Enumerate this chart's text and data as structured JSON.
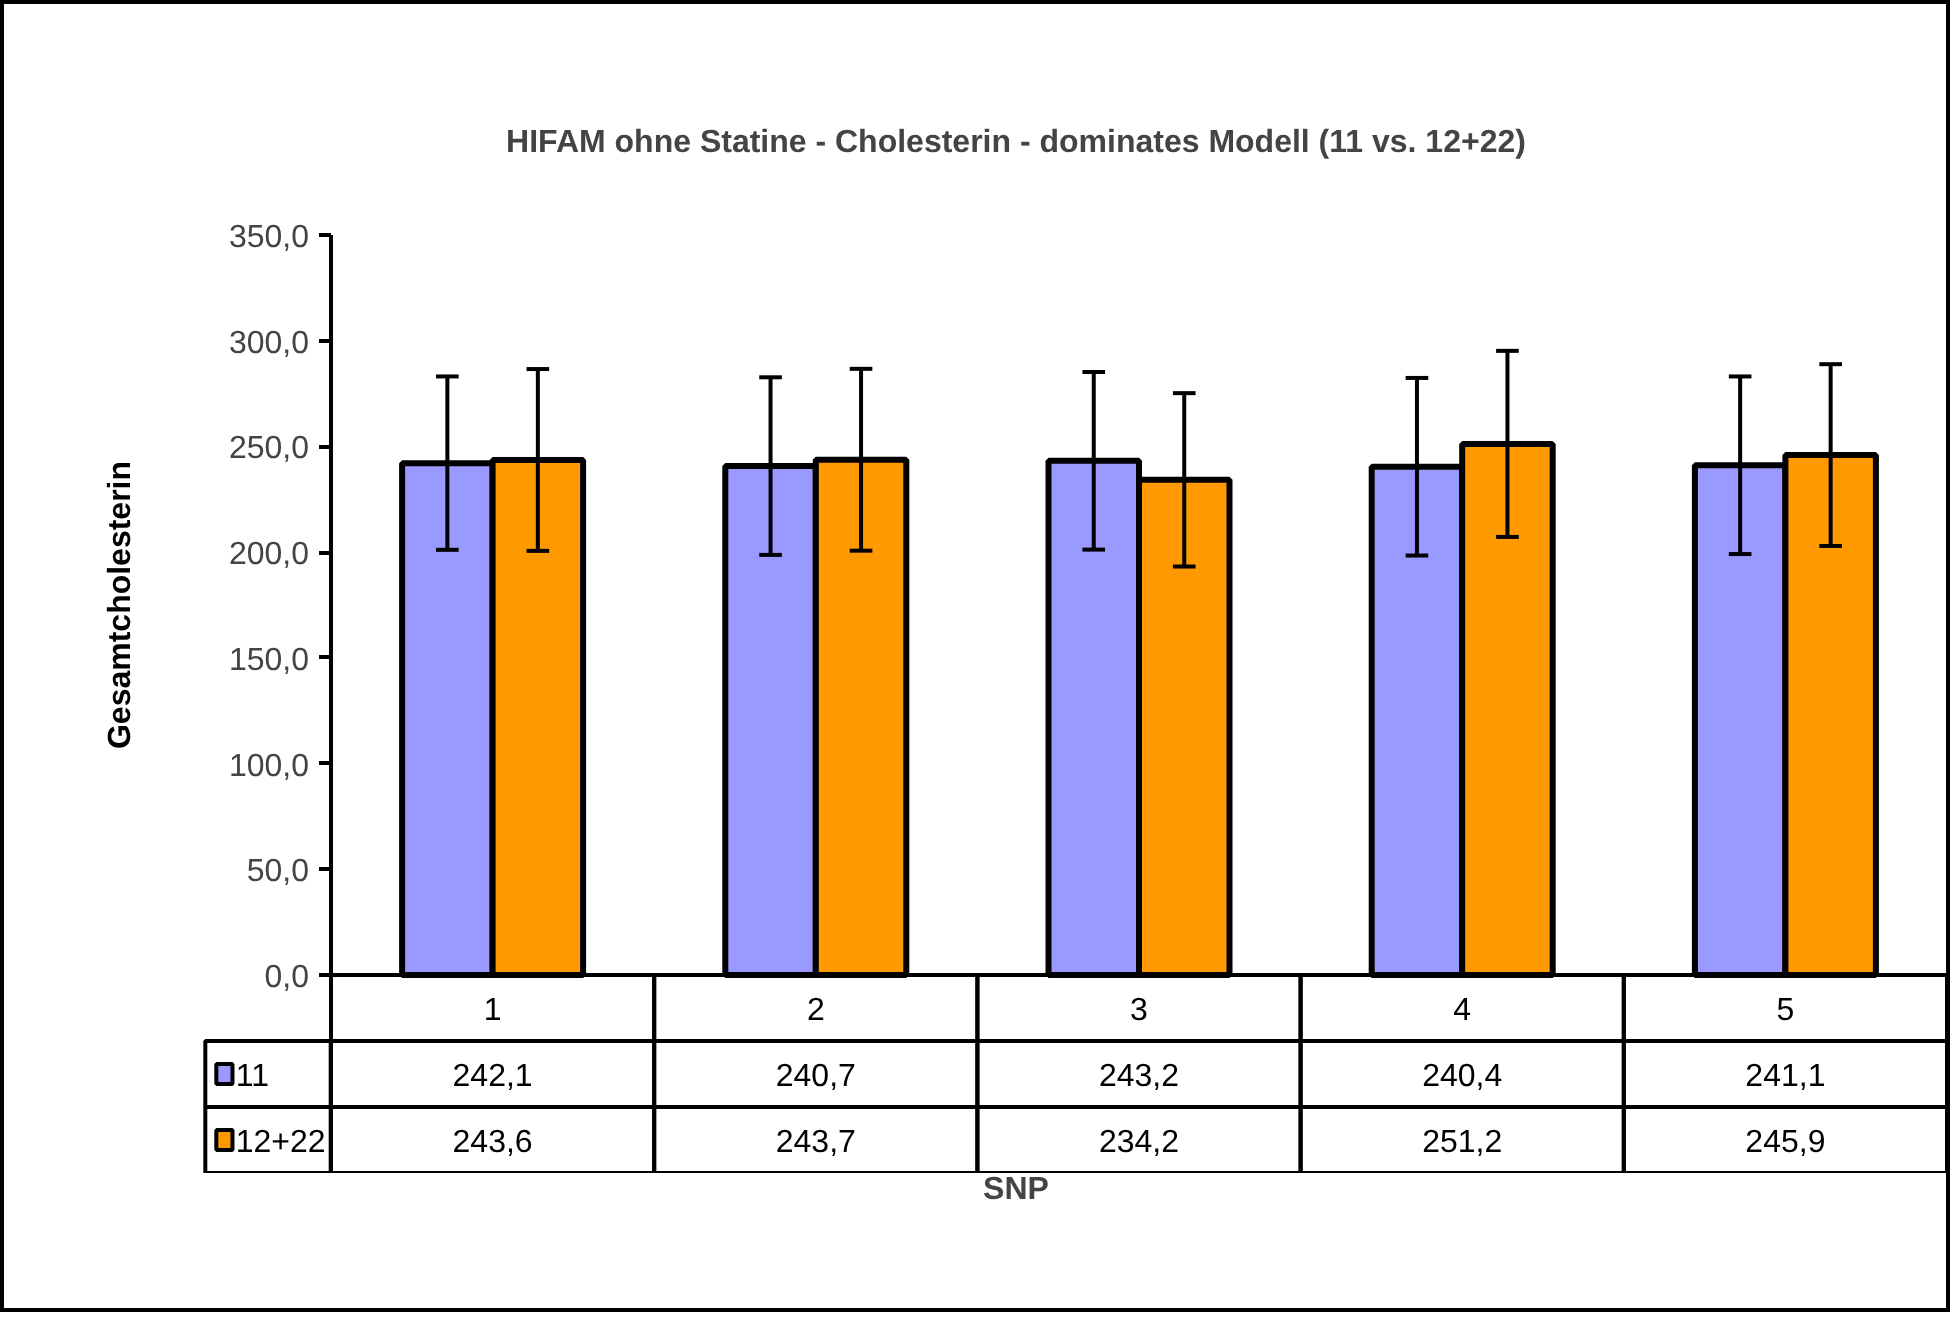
{
  "chart_data": {
    "type": "bar",
    "title": "HIFAM ohne Statine - Cholesterin - dominates Modell (11 vs. 12+22)",
    "xlabel": "SNP",
    "ylabel": "Gesamtcholesterin",
    "categories": [
      "1",
      "2",
      "3",
      "4",
      "5"
    ],
    "series": [
      {
        "name": "11",
        "color": "#9999ff",
        "values": [
          242.1,
          240.7,
          243.2,
          240.4,
          241.1
        ],
        "value_labels": [
          "242,1",
          "240,7",
          "243,2",
          "240,4",
          "241,1"
        ],
        "errors": [
          41,
          42,
          42,
          42,
          42
        ]
      },
      {
        "name": "12+22",
        "color": "#ff9900",
        "values": [
          243.6,
          243.7,
          234.2,
          251.2,
          245.9
        ],
        "value_labels": [
          "243,6",
          "243,7",
          "234,2",
          "251,2",
          "245,9"
        ],
        "errors": [
          43,
          43,
          41,
          44,
          43
        ]
      }
    ],
    "ylim": [
      0,
      350
    ],
    "yticks": [
      {
        "value": 0,
        "label": "0,0"
      },
      {
        "value": 50,
        "label": "50,0"
      },
      {
        "value": 100,
        "label": "100,0"
      },
      {
        "value": 150,
        "label": "150,0"
      },
      {
        "value": 200,
        "label": "200,0"
      },
      {
        "value": 250,
        "label": "250,0"
      },
      {
        "value": 300,
        "label": "300,0"
      },
      {
        "value": 350,
        "label": "350,0"
      }
    ],
    "grid": false,
    "legend": "bottom left"
  }
}
